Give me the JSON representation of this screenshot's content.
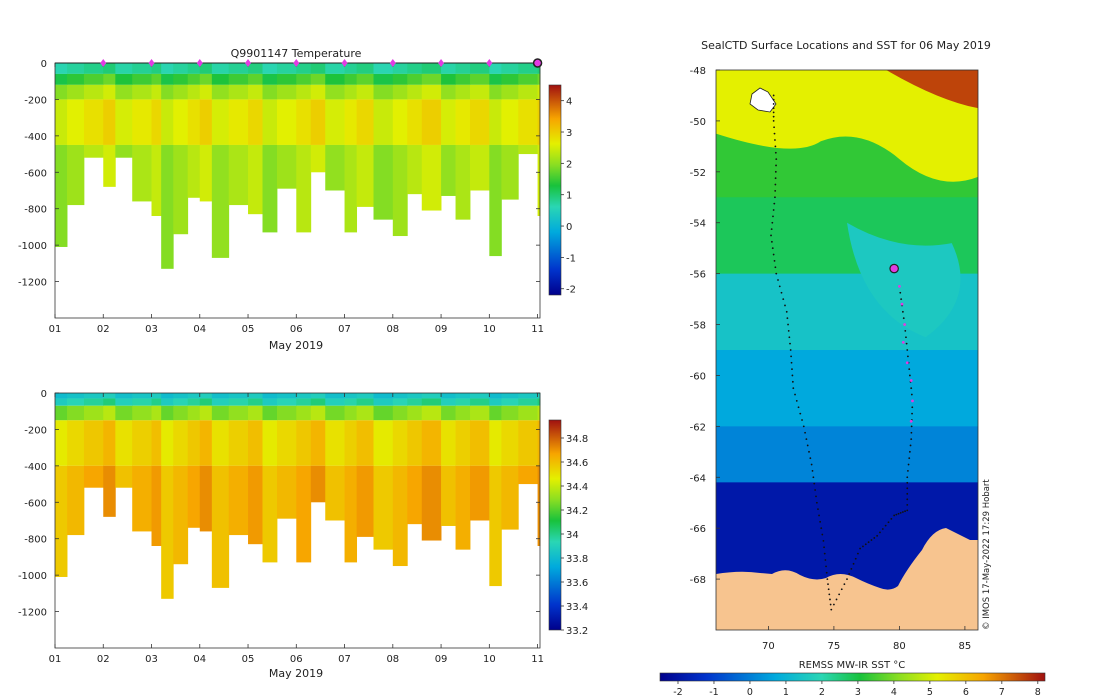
{
  "chart_data": [
    {
      "type": "heatmap",
      "title": "Q9901147  Temperature",
      "xlabel": "May 2019",
      "ylabel": "",
      "x_ticks": [
        "01",
        "02",
        "03",
        "04",
        "05",
        "06",
        "07",
        "08",
        "09",
        "10",
        "11"
      ],
      "y_ticks": [
        0,
        -200,
        -400,
        -600,
        -800,
        -1000,
        -1200
      ],
      "xlim": [
        1,
        11.05
      ],
      "ylim": [
        -1400,
        0
      ],
      "colorbar": {
        "label": "",
        "ticks": [
          4,
          3,
          2,
          1,
          0,
          -1,
          -2
        ],
        "range": [
          -2.2,
          4.5
        ]
      },
      "profile_times": [
        1.0,
        1.25,
        1.6,
        2.0,
        2.25,
        2.6,
        3.0,
        3.2,
        3.45,
        3.75,
        4.0,
        4.25,
        4.6,
        5.0,
        5.3,
        5.6,
        6.0,
        6.3,
        6.6,
        7.0,
        7.25,
        7.6,
        8.0,
        8.3,
        8.6,
        9.0,
        9.3,
        9.6,
        10.0,
        10.25,
        10.6,
        11.0
      ],
      "profile_max_depths": [
        -1010,
        -780,
        -520,
        -680,
        -520,
        -760,
        -840,
        -1130,
        -940,
        -740,
        -760,
        -1070,
        -780,
        -830,
        -930,
        -690,
        -930,
        -600,
        -700,
        -930,
        -790,
        -860,
        -950,
        -720,
        -810,
        -730,
        -860,
        -700,
        -1060,
        -750,
        -500,
        -840
      ],
      "surface_markers": [
        2,
        3,
        4,
        5,
        6,
        7,
        8,
        9,
        10
      ],
      "latest_marker": 11.0,
      "layers": [
        {
          "top": 0,
          "bottom": -60,
          "value": 0.8
        },
        {
          "top": -60,
          "bottom": -120,
          "value": 1.5
        },
        {
          "top": -120,
          "bottom": -200,
          "value": 2.2
        },
        {
          "top": -200,
          "bottom": -450,
          "value": 2.7
        },
        {
          "top": -450,
          "bottom": -1400,
          "value": 2.2
        }
      ]
    },
    {
      "type": "heatmap",
      "title": "",
      "xlabel": "May 2019",
      "ylabel": "",
      "x_ticks": [
        "01",
        "02",
        "03",
        "04",
        "05",
        "06",
        "07",
        "08",
        "09",
        "10",
        "11"
      ],
      "y_ticks": [
        0,
        -200,
        -400,
        -600,
        -800,
        -1000,
        -1200
      ],
      "xlim": [
        1,
        11.05
      ],
      "ylim": [
        -1400,
        0
      ],
      "colorbar": {
        "label": "",
        "ticks": [
          34.8,
          34.6,
          34.4,
          34.2,
          34,
          33.8,
          33.6,
          33.4,
          33.2
        ],
        "range": [
          33.2,
          34.95
        ]
      },
      "profile_times": [
        1.0,
        1.25,
        1.6,
        2.0,
        2.25,
        2.6,
        3.0,
        3.2,
        3.45,
        3.75,
        4.0,
        4.25,
        4.6,
        5.0,
        5.3,
        5.6,
        6.0,
        6.3,
        6.6,
        7.0,
        7.25,
        7.6,
        8.0,
        8.3,
        8.6,
        9.0,
        9.3,
        9.6,
        10.0,
        10.25,
        10.6,
        11.0
      ],
      "profile_max_depths": [
        -1010,
        -780,
        -520,
        -680,
        -520,
        -760,
        -840,
        -1130,
        -940,
        -740,
        -760,
        -1070,
        -780,
        -830,
        -930,
        -690,
        -930,
        -600,
        -700,
        -930,
        -790,
        -860,
        -950,
        -720,
        -810,
        -730,
        -860,
        -700,
        -1060,
        -750,
        -500,
        -840
      ],
      "layers": [
        {
          "top": 0,
          "bottom": -30,
          "value": 33.85
        },
        {
          "top": -30,
          "bottom": -70,
          "value": 33.95
        },
        {
          "top": -70,
          "bottom": -150,
          "value": 34.3
        },
        {
          "top": -150,
          "bottom": -400,
          "value": 34.55
        },
        {
          "top": -400,
          "bottom": -1400,
          "value": 34.64
        }
      ]
    },
    {
      "type": "heatmap",
      "title": "SealCTD Surface Locations and SST for 06 May 2019",
      "xlabel": "",
      "ylabel": "",
      "x_ticks": [
        70,
        75,
        80,
        85
      ],
      "y_ticks": [
        -48,
        -50,
        -52,
        -54,
        -56,
        -58,
        -60,
        -62,
        -64,
        -66,
        -68
      ],
      "xlim": [
        66,
        86
      ],
      "ylim": [
        -70,
        -48
      ],
      "colorbar": {
        "label": "REMSS MW-IR SST °C",
        "ticks": [
          -2,
          -1,
          0,
          1,
          2,
          3,
          4,
          5,
          6,
          7,
          8
        ],
        "range": [
          -2.5,
          8.2
        ]
      },
      "credit": "© IMOS 17-May-2022 17:29 Hobart",
      "sst_bands": [
        {
          "lat_top": -48,
          "lat_bottom": -50.5,
          "sst": 5.6
        },
        {
          "lat_top": -50.5,
          "lat_bottom": -53,
          "sst": 3.3
        },
        {
          "lat_top": -53,
          "lat_bottom": -56,
          "sst": 2.8
        },
        {
          "lat_top": -56,
          "lat_bottom": -59,
          "sst": 1.4
        },
        {
          "lat_top": -59,
          "lat_bottom": -62,
          "sst": 0.7
        },
        {
          "lat_top": -62,
          "lat_bottom": -64.2,
          "sst": 0.1
        },
        {
          "lat_top": -64.2,
          "lat_bottom": -70,
          "sst": -1.9
        }
      ],
      "track_points": [
        {
          "lon": 70.4,
          "lat": -49.0
        },
        {
          "lon": 70.4,
          "lat": -50.0
        },
        {
          "lon": 70.6,
          "lat": -51.5
        },
        {
          "lon": 70.5,
          "lat": -53.0
        },
        {
          "lon": 70.2,
          "lat": -54.5
        },
        {
          "lon": 70.6,
          "lat": -56.0
        },
        {
          "lon": 71.4,
          "lat": -57.5
        },
        {
          "lon": 71.7,
          "lat": -59.0
        },
        {
          "lon": 71.9,
          "lat": -60.5
        },
        {
          "lon": 72.7,
          "lat": -62.0
        },
        {
          "lon": 73.3,
          "lat": -63.5
        },
        {
          "lon": 73.7,
          "lat": -65.0
        },
        {
          "lon": 74.2,
          "lat": -66.5
        },
        {
          "lon": 74.5,
          "lat": -68.0
        },
        {
          "lon": 74.8,
          "lat": -69.2
        },
        {
          "lon": 76.0,
          "lat": -68.0
        },
        {
          "lon": 77.0,
          "lat": -66.8
        },
        {
          "lon": 78.3,
          "lat": -66.3
        },
        {
          "lon": 79.6,
          "lat": -65.5
        },
        {
          "lon": 80.6,
          "lat": -65.3
        },
        {
          "lon": 80.6,
          "lat": -64.0
        },
        {
          "lon": 80.9,
          "lat": -62.5
        },
        {
          "lon": 81.0,
          "lat": -61.0
        },
        {
          "lon": 80.7,
          "lat": -59.5
        },
        {
          "lon": 80.4,
          "lat": -58.0
        },
        {
          "lon": 80.0,
          "lat": -56.5
        }
      ],
      "recent_track_points": [
        {
          "lon": 80.0,
          "lat": -56.5
        },
        {
          "lon": 80.2,
          "lat": -57.2
        },
        {
          "lon": 80.4,
          "lat": -58.0
        },
        {
          "lon": 80.3,
          "lat": -58.7
        },
        {
          "lon": 80.6,
          "lat": -59.5
        },
        {
          "lon": 80.9,
          "lat": -60.2
        },
        {
          "lon": 81.0,
          "lat": -61.0
        },
        {
          "lon": 80.9,
          "lat": -61.8
        }
      ],
      "current_location": {
        "lon": 79.6,
        "lat": -55.8
      }
    }
  ]
}
